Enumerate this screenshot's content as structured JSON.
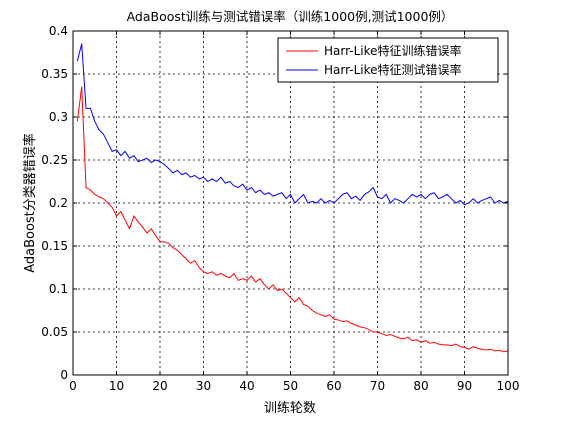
{
  "chart_data": {
    "type": "line",
    "title": "AdaBoost训练与测试错误率（训练1000例,测试1000例）",
    "xlabel": "训练轮数",
    "ylabel": "AdaBoost分类器错误率",
    "xlim": [
      0,
      100
    ],
    "ylim": [
      0,
      0.4
    ],
    "xticks": [
      0,
      10,
      20,
      30,
      40,
      50,
      60,
      70,
      80,
      90,
      100
    ],
    "yticks": [
      0,
      0.05,
      0.1,
      0.15,
      0.2,
      0.25,
      0.3,
      0.35,
      0.4
    ],
    "xtick_labels": [
      "0",
      "10",
      "20",
      "30",
      "40",
      "50",
      "60",
      "70",
      "80",
      "90",
      "100"
    ],
    "ytick_labels": [
      "0",
      "0.05",
      "0.1",
      "0.15",
      "0.2",
      "0.25",
      "0.3",
      "0.35",
      "0.4"
    ],
    "grid": true,
    "legend_position": "top-right",
    "series": [
      {
        "name": "Harr-Like特征训练错误率",
        "color": "#ff0000",
        "x": [
          1,
          2,
          3,
          4,
          5,
          6,
          7,
          8,
          9,
          10,
          11,
          12,
          13,
          14,
          15,
          16,
          17,
          18,
          19,
          20,
          21,
          22,
          23,
          24,
          25,
          26,
          27,
          28,
          29,
          30,
          31,
          32,
          33,
          34,
          35,
          36,
          37,
          38,
          39,
          40,
          41,
          42,
          43,
          44,
          45,
          46,
          47,
          48,
          49,
          50,
          51,
          52,
          53,
          54,
          55,
          56,
          57,
          58,
          59,
          60,
          61,
          62,
          63,
          64,
          65,
          66,
          67,
          68,
          69,
          70,
          71,
          72,
          73,
          74,
          75,
          76,
          77,
          78,
          79,
          80,
          81,
          82,
          83,
          84,
          85,
          86,
          87,
          88,
          89,
          90,
          91,
          92,
          93,
          94,
          95,
          96,
          97,
          98,
          99,
          100
        ],
        "values": [
          0.295,
          0.335,
          0.218,
          0.215,
          0.21,
          0.207,
          0.205,
          0.2,
          0.195,
          0.185,
          0.19,
          0.18,
          0.17,
          0.185,
          0.178,
          0.172,
          0.165,
          0.17,
          0.162,
          0.155,
          0.155,
          0.153,
          0.148,
          0.145,
          0.14,
          0.135,
          0.13,
          0.133,
          0.125,
          0.12,
          0.118,
          0.12,
          0.116,
          0.118,
          0.115,
          0.113,
          0.118,
          0.11,
          0.112,
          0.11,
          0.115,
          0.108,
          0.112,
          0.105,
          0.1,
          0.105,
          0.098,
          0.1,
          0.095,
          0.09,
          0.085,
          0.09,
          0.082,
          0.08,
          0.075,
          0.072,
          0.07,
          0.068,
          0.07,
          0.065,
          0.064,
          0.062,
          0.063,
          0.06,
          0.058,
          0.056,
          0.055,
          0.053,
          0.05,
          0.05,
          0.048,
          0.046,
          0.047,
          0.045,
          0.043,
          0.042,
          0.044,
          0.04,
          0.041,
          0.038,
          0.04,
          0.037,
          0.038,
          0.036,
          0.035,
          0.035,
          0.034,
          0.036,
          0.033,
          0.032,
          0.03,
          0.033,
          0.031,
          0.03,
          0.029,
          0.03,
          0.028,
          0.029,
          0.027,
          0.028
        ]
      },
      {
        "name": "Harr-Like特征测试错误率",
        "color": "#0000ff",
        "x": [
          1,
          2,
          3,
          4,
          5,
          6,
          7,
          8,
          9,
          10,
          11,
          12,
          13,
          14,
          15,
          16,
          17,
          18,
          19,
          20,
          21,
          22,
          23,
          24,
          25,
          26,
          27,
          28,
          29,
          30,
          31,
          32,
          33,
          34,
          35,
          36,
          37,
          38,
          39,
          40,
          41,
          42,
          43,
          44,
          45,
          46,
          47,
          48,
          49,
          50,
          51,
          52,
          53,
          54,
          55,
          56,
          57,
          58,
          59,
          60,
          61,
          62,
          63,
          64,
          65,
          66,
          67,
          68,
          69,
          70,
          71,
          72,
          73,
          74,
          75,
          76,
          77,
          78,
          79,
          80,
          81,
          82,
          83,
          84,
          85,
          86,
          87,
          88,
          89,
          90,
          91,
          92,
          93,
          94,
          95,
          96,
          97,
          98,
          99,
          100
        ],
        "values": [
          0.365,
          0.385,
          0.31,
          0.31,
          0.295,
          0.285,
          0.28,
          0.27,
          0.26,
          0.262,
          0.255,
          0.26,
          0.252,
          0.255,
          0.248,
          0.25,
          0.252,
          0.247,
          0.25,
          0.248,
          0.245,
          0.24,
          0.235,
          0.238,
          0.233,
          0.235,
          0.23,
          0.232,
          0.228,
          0.23,
          0.225,
          0.228,
          0.225,
          0.23,
          0.223,
          0.225,
          0.22,
          0.218,
          0.222,
          0.215,
          0.218,
          0.212,
          0.215,
          0.21,
          0.212,
          0.208,
          0.21,
          0.212,
          0.205,
          0.21,
          0.2,
          0.205,
          0.21,
          0.2,
          0.202,
          0.2,
          0.205,
          0.2,
          0.203,
          0.2,
          0.205,
          0.21,
          0.212,
          0.205,
          0.208,
          0.203,
          0.21,
          0.213,
          0.218,
          0.207,
          0.205,
          0.21,
          0.2,
          0.205,
          0.203,
          0.2,
          0.205,
          0.21,
          0.207,
          0.21,
          0.205,
          0.21,
          0.212,
          0.205,
          0.207,
          0.21,
          0.205,
          0.2,
          0.203,
          0.198,
          0.2,
          0.205,
          0.2,
          0.203,
          0.205,
          0.207,
          0.2,
          0.203,
          0.2,
          0.202
        ]
      }
    ]
  }
}
